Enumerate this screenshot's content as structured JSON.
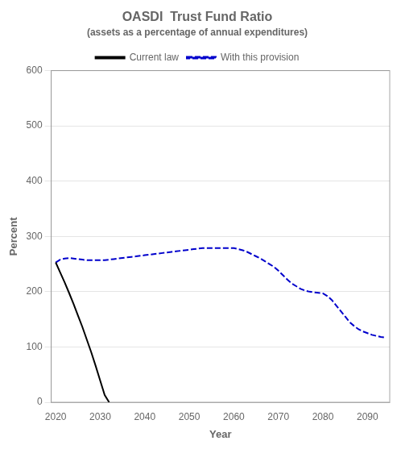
{
  "chart_data": {
    "type": "line",
    "title": "OASDI  Trust Fund Ratio",
    "subtitle": "(assets as a percentage of annual expenditures)",
    "xlabel": "Year",
    "ylabel": "Percent",
    "xlim": [
      2019,
      2095
    ],
    "ylim": [
      0,
      600
    ],
    "xticks": [
      2020,
      2030,
      2040,
      2050,
      2060,
      2070,
      2080,
      2090
    ],
    "yticks": [
      0,
      100,
      200,
      300,
      400,
      500,
      600
    ],
    "grid": "y",
    "legend": "top",
    "series": [
      {
        "name": "Current law",
        "color": "#000000",
        "line_style": "solid",
        "x": [
          2020,
          2021,
          2022,
          2023,
          2024,
          2025,
          2026,
          2027,
          2028,
          2029,
          2030,
          2031,
          2032
        ],
        "values": [
          253,
          235,
          217,
          198,
          178,
          157,
          136,
          113,
          90,
          65,
          39,
          13,
          0
        ]
      },
      {
        "name": "With this provision",
        "color": "#0000cc",
        "line_style": "dashed",
        "x": [
          2020,
          2021,
          2022,
          2023,
          2024,
          2025,
          2026,
          2027,
          2028,
          2029,
          2030,
          2031,
          2032,
          2033,
          2034,
          2035,
          2036,
          2037,
          2038,
          2039,
          2040,
          2041,
          2042,
          2043,
          2044,
          2045,
          2046,
          2047,
          2048,
          2049,
          2050,
          2051,
          2052,
          2053,
          2054,
          2055,
          2056,
          2057,
          2058,
          2059,
          2060,
          2061,
          2062,
          2063,
          2064,
          2065,
          2066,
          2067,
          2068,
          2069,
          2070,
          2071,
          2072,
          2073,
          2074,
          2075,
          2076,
          2077,
          2078,
          2079,
          2080,
          2081,
          2082,
          2083,
          2084,
          2085,
          2086,
          2087,
          2088,
          2089,
          2090,
          2091,
          2092,
          2093,
          2094
        ],
        "values": [
          253,
          258,
          260,
          261,
          260,
          259,
          258,
          257,
          257,
          257,
          257,
          257,
          258,
          259,
          260,
          261,
          262,
          263,
          264,
          265,
          266,
          267,
          268,
          269,
          270,
          271,
          272,
          273,
          274,
          275,
          276,
          277,
          278,
          279,
          279,
          279,
          279,
          279,
          279,
          279,
          279,
          277,
          275,
          272,
          268,
          264,
          260,
          255,
          250,
          245,
          238,
          230,
          222,
          215,
          210,
          205,
          202,
          200,
          199,
          198,
          197,
          192,
          185,
          175,
          165,
          155,
          145,
          138,
          132,
          128,
          125,
          122,
          120,
          118,
          117
        ]
      }
    ]
  }
}
